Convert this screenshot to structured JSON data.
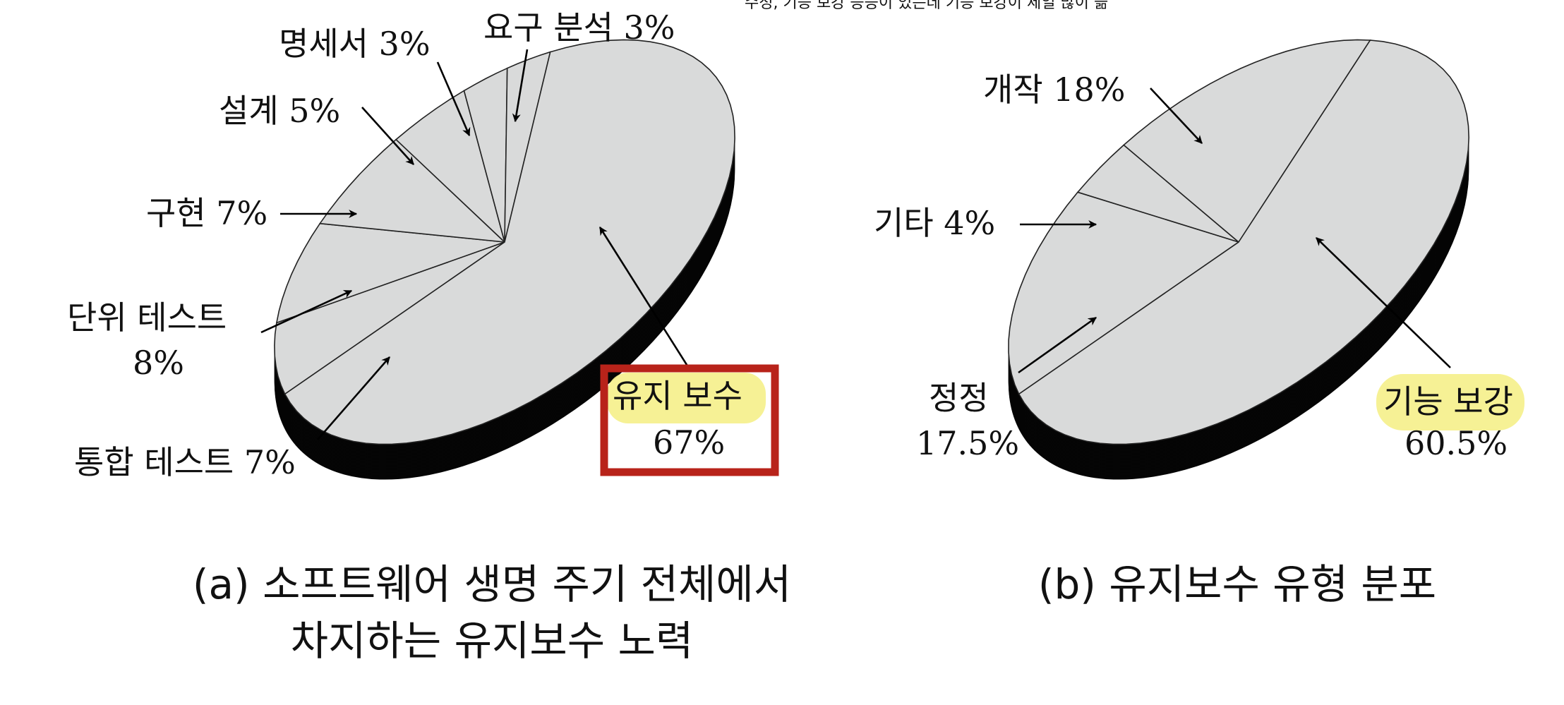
{
  "top_note": "수정, 기능 보강 등등이 있는데 기능 보강이 제일 많이 듦",
  "colors": {
    "pie_face": "#d9dada",
    "pie_side": "#050505",
    "highlight": "#f5f08a",
    "box": "#b8231a"
  },
  "chart_data": [
    {
      "type": "pie",
      "title": "(a) 소프트웨어 생명 주기 전체에서",
      "subtitle": "차지하는 유지보수 노력",
      "slices": [
        {
          "name": "요구 분석",
          "value": 3,
          "label": "요구 분석 3%"
        },
        {
          "name": "명세서",
          "value": 3,
          "label": "명세서 3%"
        },
        {
          "name": "설계",
          "value": 5,
          "label": "설계 5%"
        },
        {
          "name": "구현",
          "value": 7,
          "label": "구현 7%"
        },
        {
          "name": "단위 테스트",
          "value": 8,
          "label": "단위 테스트",
          "label2": "8%"
        },
        {
          "name": "통합 테스트",
          "value": 7,
          "label": "통합 테스트 7%"
        },
        {
          "name": "유지 보수",
          "value": 67,
          "label": "유지 보수",
          "label2": "67%",
          "boxed": true
        }
      ]
    },
    {
      "type": "pie",
      "title": "(b) 유지보수 유형 분포",
      "slices": [
        {
          "name": "개작",
          "value": 18,
          "label": "개작 18%"
        },
        {
          "name": "기타",
          "value": 4,
          "label": "기타 4%"
        },
        {
          "name": "정정",
          "value": 17.5,
          "label": "정정",
          "label2": "17.5%"
        },
        {
          "name": "기능 보강",
          "value": 60.5,
          "label": "기능 보강",
          "label2": "60.5%",
          "highlighted": true
        }
      ]
    }
  ]
}
